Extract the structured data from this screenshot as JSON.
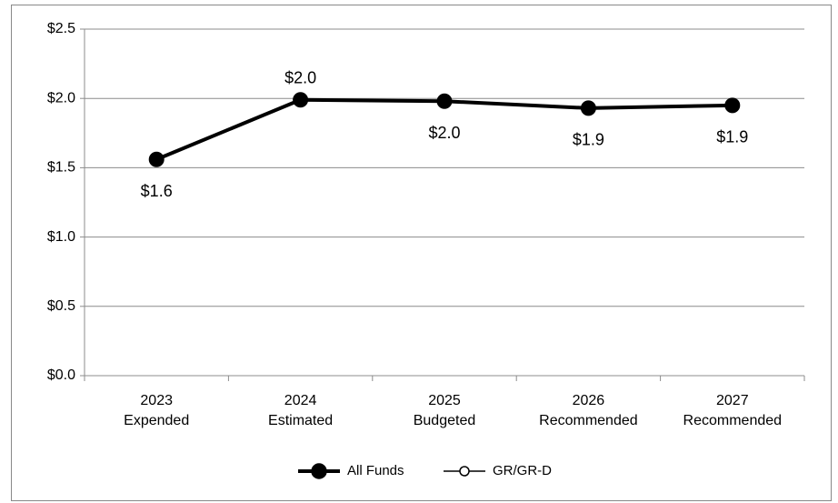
{
  "chart_data": {
    "type": "line",
    "categories": [
      [
        "2023",
        "Expended"
      ],
      [
        "2024",
        "Estimated"
      ],
      [
        "2025",
        "Budgeted"
      ],
      [
        "2026",
        "Recommended"
      ],
      [
        "2027",
        "Recommended"
      ]
    ],
    "series": [
      {
        "name": "All Funds",
        "color": "#000000",
        "values": [
          1.56,
          1.99,
          1.98,
          1.93,
          1.95
        ],
        "value_labels": [
          "$1.6",
          "$2.0",
          "$2.0",
          "$1.9",
          "$1.9"
        ]
      },
      {
        "name": "GR/GR-D",
        "color": "#000000",
        "values": [
          null,
          null,
          null,
          null,
          null
        ]
      }
    ],
    "ylim": [
      0,
      2.5
    ],
    "yticks": [
      {
        "value": 0,
        "label": "$0.0"
      },
      {
        "value": 0.5,
        "label": "$0.5"
      },
      {
        "value": 1,
        "label": "$1.0"
      },
      {
        "value": 1.5,
        "label": "$1.5"
      },
      {
        "value": 2,
        "label": "$2.0"
      },
      {
        "value": 2.5,
        "label": "$2.5"
      }
    ],
    "grid": true,
    "legend": "bottom"
  }
}
